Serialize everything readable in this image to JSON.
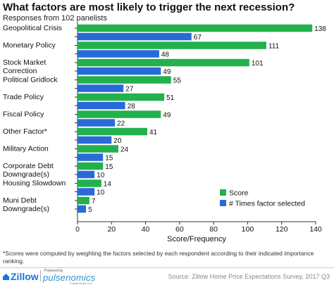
{
  "title": "What factors are most likely to trigger the next recession?",
  "subtitle": "Responses from 102 panelists",
  "chart_data": {
    "type": "bar",
    "orientation": "horizontal",
    "categories": [
      [
        "Geopolitical Crisis"
      ],
      [
        "Monetary Policy"
      ],
      [
        "Stock Market",
        "Correction"
      ],
      [
        "Political Gridlock"
      ],
      [
        "Trade Policy"
      ],
      [
        "Fiscal Policy"
      ],
      [
        "Other Factor*"
      ],
      [
        "Military Action"
      ],
      [
        "Corporate Debt",
        "Downgrade(s)"
      ],
      [
        "Housing Slowdown"
      ],
      [
        "Muni Debt",
        "Downgrade(s)"
      ]
    ],
    "series": [
      {
        "name": "Score",
        "color": "#22b14c",
        "values": [
          138,
          111,
          101,
          55,
          51,
          49,
          41,
          24,
          15,
          14,
          7
        ]
      },
      {
        "name": "# Times factor selected",
        "color": "#2a6ad8",
        "values": [
          67,
          48,
          49,
          27,
          28,
          22,
          20,
          15,
          10,
          10,
          5
        ]
      }
    ],
    "xlim": [
      0,
      140
    ],
    "xticks": [
      0,
      20,
      40,
      60,
      80,
      100,
      120,
      140
    ],
    "xlabel": "Score/Frequency",
    "ylabel": "",
    "grid": false,
    "legend_position": "bottom-right"
  },
  "footnote": "*Scores were computed by weighting the factors selected by each respondent according to their indicated importance ranking.",
  "footer": {
    "zillow_logo_text": "Zillow",
    "powered_by": "Powered by",
    "pulsenomics_logo_text": "pulsenomics",
    "pulsenomics_sub": "Pulsenomics LLC",
    "source": "Source: Zillow Home Price Expectations Survey, 2017 Q3"
  }
}
